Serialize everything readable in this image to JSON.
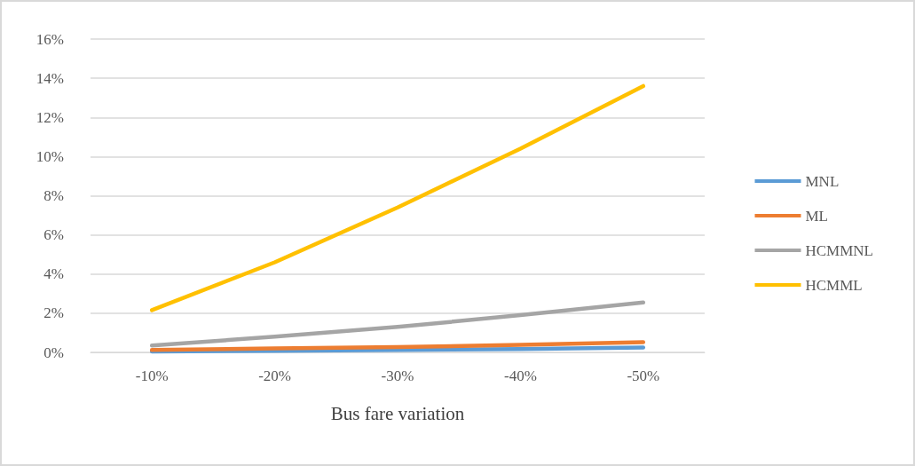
{
  "chart_data": {
    "type": "line",
    "xlabel": "Bus fare variation",
    "categories": [
      "-10%",
      "-20%",
      "-30%",
      "-40%",
      "-50%"
    ],
    "series": [
      {
        "name": "MNL",
        "color": "#5b9bd5",
        "values": [
          0.05,
          0.08,
          0.12,
          0.17,
          0.25
        ]
      },
      {
        "name": "ML",
        "color": "#ed7d31",
        "values": [
          0.12,
          0.2,
          0.27,
          0.38,
          0.52
        ]
      },
      {
        "name": "HCMMNL",
        "color": "#a5a5a5",
        "values": [
          0.35,
          0.8,
          1.3,
          1.9,
          2.55
        ]
      },
      {
        "name": "HCMML",
        "color": "#ffc000",
        "values": [
          2.16,
          4.6,
          7.4,
          10.4,
          13.6
        ]
      }
    ],
    "ylim": [
      0,
      16
    ],
    "yticks": [
      {
        "value": 0,
        "label": "0%"
      },
      {
        "value": 2,
        "label": "2%"
      },
      {
        "value": 4,
        "label": "4%"
      },
      {
        "value": 6,
        "label": "6%"
      },
      {
        "value": 8,
        "label": "8%"
      },
      {
        "value": 10,
        "label": "10%"
      },
      {
        "value": 12,
        "label": "12%"
      },
      {
        "value": 14,
        "label": "14%"
      },
      {
        "value": 16,
        "label": "16%"
      }
    ],
    "grid": "y",
    "legend": "right",
    "marker": "none",
    "line_style": "solid"
  }
}
